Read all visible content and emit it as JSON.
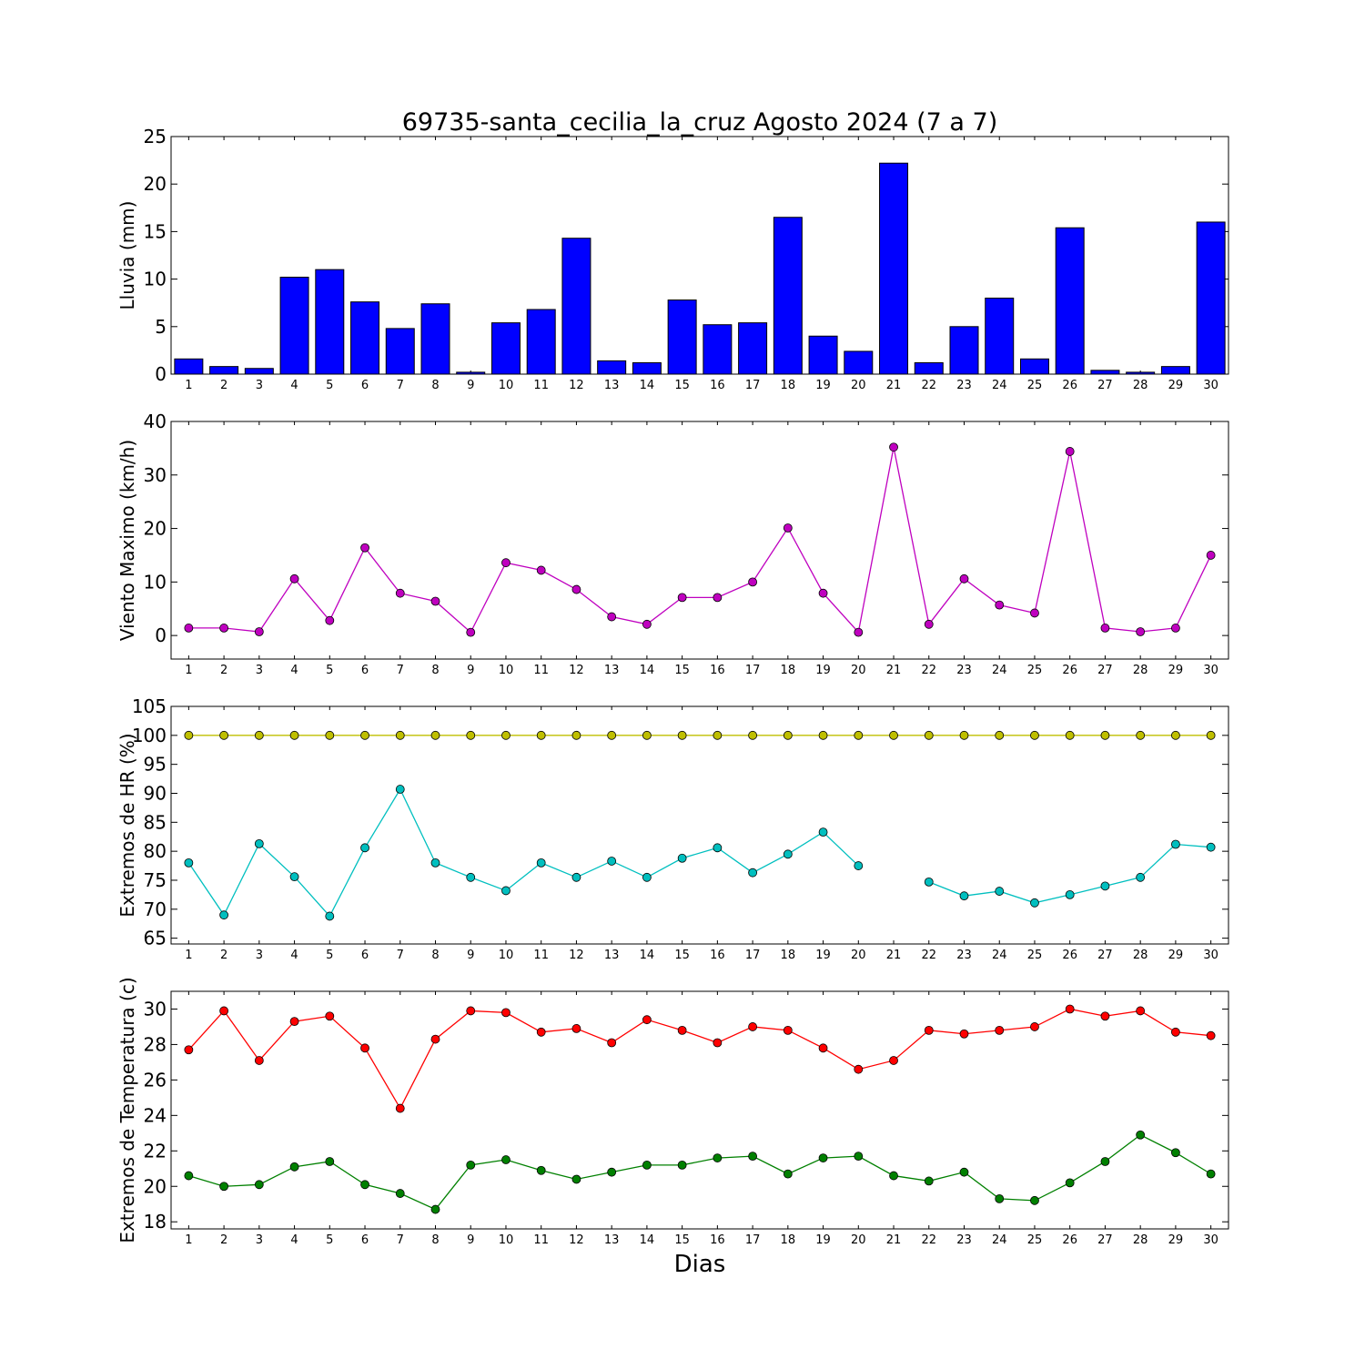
{
  "chart_data": {
    "title": "69735-santa_cecilia_la_cruz Agosto 2024  (7 a 7)",
    "xlabel": "Dias",
    "days": [
      1,
      2,
      3,
      4,
      5,
      6,
      7,
      8,
      9,
      10,
      11,
      12,
      13,
      14,
      15,
      16,
      17,
      18,
      19,
      20,
      21,
      22,
      23,
      24,
      25,
      26,
      27,
      28,
      29,
      30
    ],
    "panels": [
      {
        "type": "bar",
        "ylabel": "Lluvia (mm)",
        "ylim": [
          0,
          25
        ],
        "yticks": [
          0,
          5,
          10,
          15,
          20,
          25
        ],
        "series": [
          {
            "color": "#0000ff",
            "values": [
              1.6,
              0.8,
              0.6,
              10.2,
              11.0,
              7.6,
              4.8,
              7.4,
              0.2,
              5.4,
              6.8,
              14.3,
              1.4,
              1.2,
              7.8,
              5.2,
              5.4,
              16.5,
              4.0,
              2.4,
              22.2,
              1.2,
              5.0,
              8.0,
              1.6,
              15.4,
              0.4,
              0.2,
              0.8,
              16.0
            ]
          }
        ]
      },
      {
        "type": "line",
        "ylabel": "Viento Maximo (km/h)",
        "ylim": [
          -4.4,
          40
        ],
        "yticks": [
          0,
          10,
          20,
          30,
          40
        ],
        "series": [
          {
            "color": "#bf00bf",
            "values": [
              1.4,
              1.4,
              0.7,
              10.6,
              2.8,
              16.4,
              7.9,
              6.4,
              0.6,
              13.6,
              12.2,
              8.6,
              3.5,
              2.1,
              7.1,
              7.1,
              10.0,
              20.1,
              7.9,
              0.6,
              35.2,
              2.1,
              10.6,
              5.7,
              4.2,
              34.4,
              1.4,
              0.7,
              1.4,
              15.0
            ]
          }
        ]
      },
      {
        "type": "line",
        "ylabel": "Extremos de HR (%)",
        "ylim": [
          64,
          105
        ],
        "yticks": [
          65,
          70,
          75,
          80,
          85,
          90,
          95,
          100,
          105
        ],
        "series": [
          {
            "color": "#bfbf00",
            "values": [
              100,
              100,
              100,
              100,
              100,
              100,
              100,
              100,
              100,
              100,
              100,
              100,
              100,
              100,
              100,
              100,
              100,
              100,
              100,
              100,
              100,
              100,
              100,
              100,
              100,
              100,
              100,
              100,
              100,
              100
            ]
          },
          {
            "color": "#00bfbf",
            "values": [
              78,
              69,
              81.3,
              75.6,
              68.8,
              80.6,
              90.7,
              78,
              75.5,
              73.2,
              78,
              75.5,
              78.3,
              75.5,
              78.8,
              80.6,
              76.3,
              79.5,
              83.3,
              77.5,
              null,
              74.7,
              72.3,
              73.1,
              71.1,
              72.5,
              74,
              75.5,
              81.2,
              80.7
            ]
          }
        ]
      },
      {
        "type": "line",
        "ylabel": "Extremos de Temperatura (c)",
        "ylim": [
          17.6,
          31
        ],
        "yticks": [
          18,
          20,
          22,
          24,
          26,
          28,
          30
        ],
        "series": [
          {
            "color": "#ff0000",
            "values": [
              27.7,
              29.9,
              27.1,
              29.3,
              29.6,
              27.8,
              24.4,
              28.3,
              29.9,
              29.8,
              28.7,
              28.9,
              28.1,
              29.4,
              28.8,
              28.1,
              29.0,
              28.8,
              27.8,
              26.6,
              27.1,
              28.8,
              28.6,
              28.8,
              29.0,
              30.0,
              29.6,
              29.9,
              28.7,
              28.5
            ]
          },
          {
            "color": "#008000",
            "values": [
              20.6,
              20.0,
              20.1,
              21.1,
              21.4,
              20.1,
              19.6,
              18.7,
              21.2,
              21.5,
              20.9,
              20.4,
              20.8,
              21.2,
              21.2,
              21.6,
              21.7,
              20.7,
              21.6,
              21.7,
              20.6,
              20.3,
              20.8,
              19.3,
              19.2,
              20.2,
              21.4,
              22.9,
              21.9,
              20.7
            ]
          }
        ]
      }
    ]
  }
}
